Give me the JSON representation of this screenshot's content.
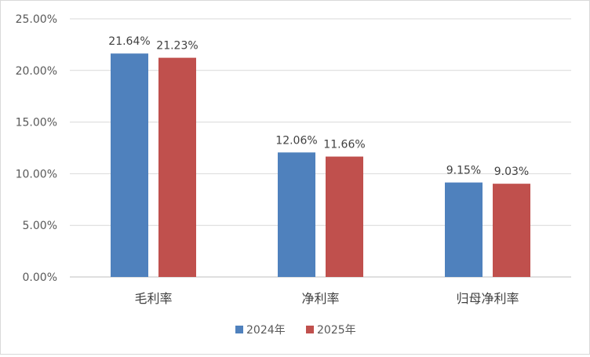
{
  "chart_data": {
    "type": "bar",
    "categories": [
      "毛利率",
      "净利率",
      "归母净利率"
    ],
    "series": [
      {
        "name": "2024年",
        "color": "#4f81bd",
        "values": [
          21.64,
          12.06,
          9.15
        ],
        "labels": [
          "21.64%",
          "12.06%",
          "9.15%"
        ]
      },
      {
        "name": "2025年",
        "color": "#c0504d",
        "values": [
          21.23,
          11.66,
          9.03
        ],
        "labels": [
          "21.23%",
          "11.66%",
          "9.03%"
        ]
      }
    ],
    "ylim": [
      0,
      25
    ],
    "yticks": [
      0,
      5,
      10,
      15,
      20,
      25
    ],
    "ytick_labels": [
      "0.00%",
      "5.00%",
      "10.00%",
      "15.00%",
      "20.00%",
      "25.00%"
    ],
    "grid": true,
    "legend": "bottom-center"
  }
}
